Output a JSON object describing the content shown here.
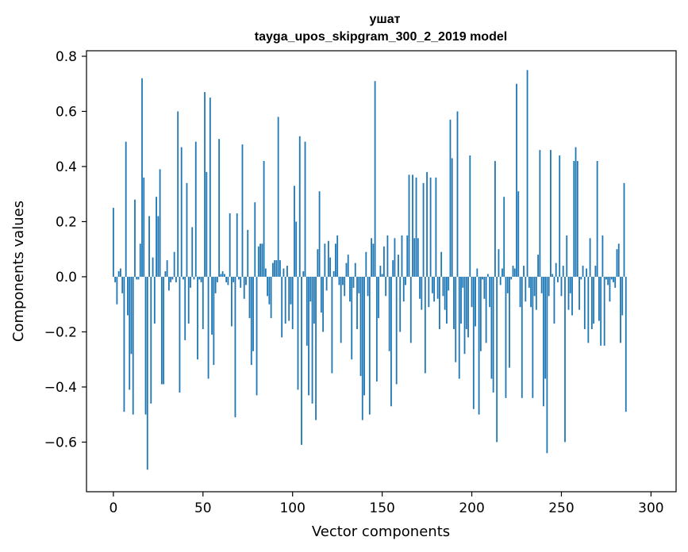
{
  "chart_data": {
    "type": "bar",
    "title_line1": "ушат",
    "title_line2": "tayga_upos_skipgram_300_2_2019 model",
    "xlabel": "Vector components",
    "ylabel": "Components values",
    "xlim": [
      -15,
      314
    ],
    "ylim": [
      -0.78,
      0.82
    ],
    "xticks": [
      0,
      50,
      100,
      150,
      200,
      250,
      300
    ],
    "xtick_labels": [
      "0",
      "50",
      "100",
      "150",
      "200",
      "250",
      "300"
    ],
    "yticks": [
      -0.6,
      -0.4,
      -0.2,
      0.0,
      0.2,
      0.4,
      0.6,
      0.8
    ],
    "ytick_labels": [
      "−0.6",
      "−0.4",
      "−0.2",
      "0.0",
      "0.2",
      "0.4",
      "0.6",
      "0.8"
    ],
    "color": "#1f77b4",
    "values": [
      0.25,
      -0.02,
      -0.1,
      0.02,
      0.03,
      -0.06,
      -0.49,
      0.49,
      -0.14,
      -0.41,
      -0.28,
      -0.5,
      0.28,
      -0.01,
      -0.01,
      0.12,
      0.72,
      0.36,
      -0.5,
      -0.7,
      0.22,
      -0.46,
      0.07,
      -0.17,
      0.29,
      0.22,
      0.39,
      -0.39,
      -0.39,
      0.02,
      0.06,
      -0.05,
      -0.02,
      -0.01,
      0.09,
      -0.02,
      0.6,
      -0.42,
      0.47,
      -0.01,
      -0.23,
      0.34,
      -0.17,
      -0.04,
      0.18,
      -0.01,
      0.49,
      -0.3,
      -0.01,
      -0.02,
      -0.19,
      0.67,
      0.38,
      -0.37,
      0.65,
      -0.21,
      -0.32,
      -0.06,
      -0.02,
      0.5,
      0.01,
      0.02,
      0.01,
      -0.02,
      -0.03,
      0.23,
      -0.18,
      -0.02,
      -0.51,
      0.23,
      -0.01,
      -0.04,
      0.48,
      -0.08,
      -0.03,
      0.17,
      -0.15,
      -0.32,
      -0.27,
      0.27,
      -0.43,
      0.11,
      0.12,
      0.12,
      0.42,
      0.03,
      -0.07,
      -0.1,
      -0.15,
      0.05,
      0.06,
      0.06,
      0.58,
      0.06,
      -0.22,
      0.03,
      -0.17,
      0.04,
      -0.16,
      -0.1,
      -0.19,
      0.33,
      0.2,
      -0.41,
      0.51,
      -0.61,
      0.02,
      0.49,
      -0.25,
      -0.43,
      -0.09,
      -0.46,
      -0.17,
      -0.52,
      0.1,
      0.31,
      -0.13,
      -0.2,
      0.12,
      -0.05,
      0.13,
      0.07,
      -0.35,
      0.02,
      0.12,
      0.15,
      -0.03,
      -0.24,
      -0.03,
      -0.07,
      0.05,
      0.08,
      -0.09,
      -0.3,
      -0.04,
      0.05,
      -0.19,
      -0.06,
      -0.36,
      -0.52,
      -0.43,
      0.09,
      -0.07,
      -0.5,
      0.14,
      0.12,
      0.71,
      -0.38,
      -0.15,
      0.04,
      0.01,
      0.11,
      -0.07,
      0.15,
      -0.27,
      -0.47,
      0.06,
      0.14,
      -0.39,
      0.08,
      -0.2,
      0.15,
      -0.09,
      -0.03,
      0.15,
      0.37,
      -0.24,
      0.37,
      0.14,
      0.36,
      0.14,
      -0.08,
      -0.12,
      0.34,
      -0.35,
      0.38,
      -0.11,
      0.36,
      -0.06,
      -0.09,
      0.36,
      -0.08,
      -0.19,
      0.09,
      -0.07,
      -0.12,
      -0.17,
      -0.05,
      0.57,
      0.43,
      -0.19,
      -0.31,
      0.6,
      -0.37,
      -0.17,
      -0.04,
      -0.28,
      -0.19,
      -0.22,
      0.44,
      -0.11,
      -0.48,
      -0.18,
      0.03,
      -0.5,
      -0.27,
      -0.01,
      -0.08,
      -0.24,
      0.01,
      -0.11,
      -0.37,
      -0.42,
      0.42,
      -0.6,
      0.1,
      -0.03,
      0.03,
      0.29,
      -0.44,
      -0.06,
      -0.33,
      -0.01,
      0.04,
      0.03,
      0.7,
      0.31,
      -0.11,
      -0.44,
      0.04,
      -0.09,
      0.75,
      -0.04,
      -0.11,
      -0.44,
      -0.07,
      -0.12,
      0.08,
      0.46,
      -0.06,
      -0.47,
      -0.37,
      -0.64,
      -0.07,
      0.46,
      0.01,
      -0.17,
      0.05,
      -0.02,
      0.44,
      -0.07,
      0.04,
      -0.6,
      0.15,
      -0.12,
      -0.06,
      -0.14,
      0.42,
      0.47,
      0.42,
      -0.12,
      -0.01,
      0.04,
      -0.19,
      0.03,
      -0.24,
      0.14,
      -0.19,
      -0.17,
      0.04,
      0.42,
      -0.16,
      -0.25,
      0.15,
      -0.25,
      -0.01,
      -0.03,
      -0.09,
      -0.01,
      -0.02,
      -0.04,
      0.1,
      0.12,
      -0.24,
      -0.14,
      0.34,
      -0.49
    ]
  }
}
